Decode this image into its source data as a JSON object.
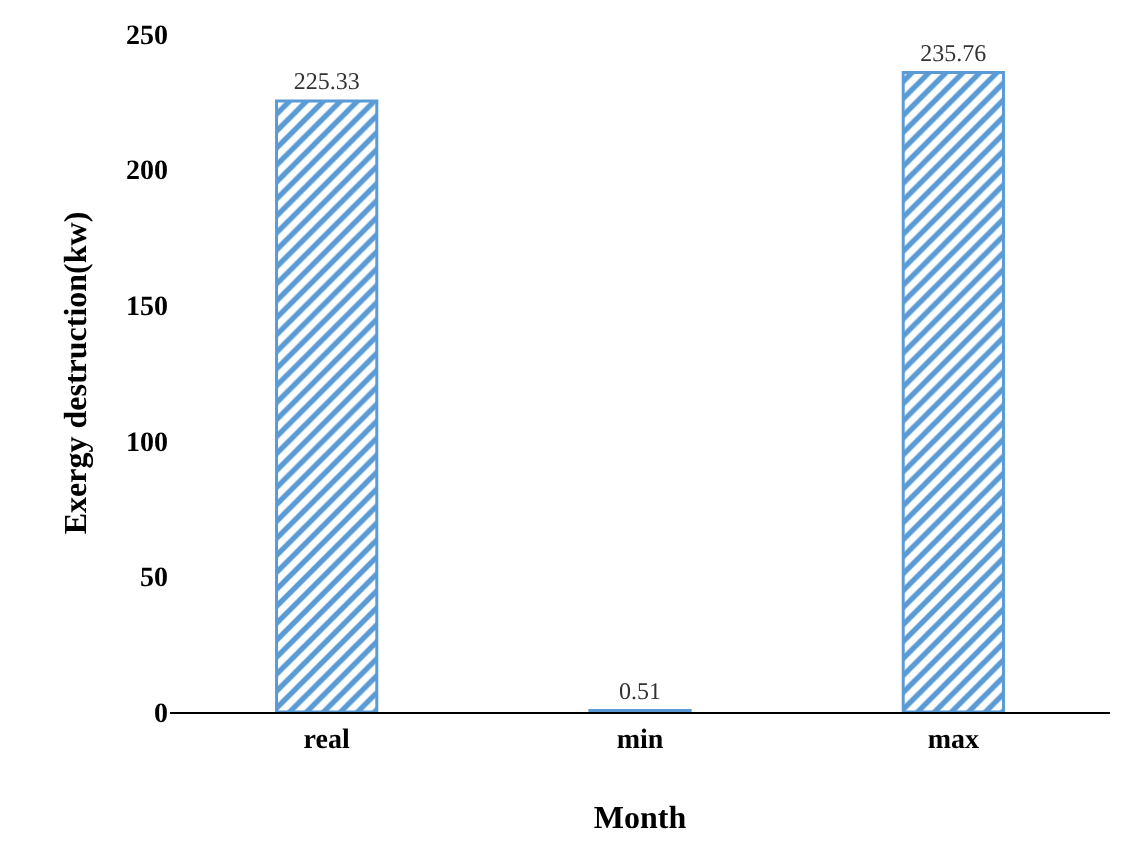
{
  "chart_data": {
    "type": "bar",
    "xlabel": "Month",
    "ylabel": "Exergy destruction(kw)",
    "categories": [
      "real",
      "min",
      "max"
    ],
    "values": [
      225.33,
      0.51,
      235.76
    ],
    "color": "#5b9bd5",
    "ylim": [
      0,
      250
    ],
    "yticks": [
      0,
      50,
      100,
      150,
      200,
      250
    ],
    "grid": false,
    "data_labels": true
  }
}
